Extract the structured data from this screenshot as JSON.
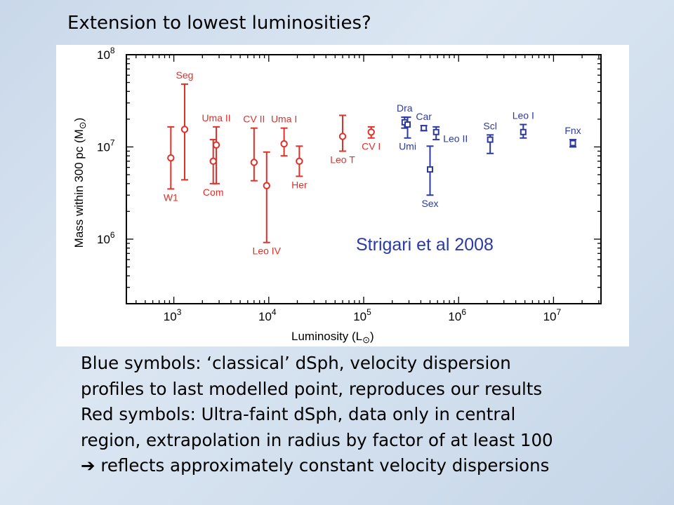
{
  "slide": {
    "title": "Extension to lowest luminosities?",
    "notes": [
      {
        "text": "Blue symbols: ‘classical’ dSph, velocity dispersion"
      },
      {
        "text": "profiles to last modelled point, reproduces our results"
      },
      {
        "text": "Red symbols: Ultra-faint dSph, data only in central"
      },
      {
        "text": "region, extrapolation in radius by factor of at least 100"
      },
      {
        "arrow": "➔",
        "text": " reflects approximately constant velocity dispersions"
      }
    ]
  },
  "colors": {
    "red": "#e0302a",
    "blue": "#2c3a9e",
    "annotation": "#2a3aa8"
  },
  "chart_data": {
    "type": "scatter",
    "title": "",
    "xlabel": "Luminosity (L",
    "ylabel": "Mass within 300 pc (M",
    "xscale": "log",
    "yscale": "log",
    "xlim_log10": [
      2.5,
      7.5
    ],
    "ylim_log10": [
      5.3,
      8
    ],
    "xticks": [
      {
        "base": "10",
        "exp": "3",
        "v": 3
      },
      {
        "base": "10",
        "exp": "4",
        "v": 4
      },
      {
        "base": "10",
        "exp": "5",
        "v": 5
      },
      {
        "base": "10",
        "exp": "6",
        "v": 6
      },
      {
        "base": "10",
        "exp": "7",
        "v": 7
      }
    ],
    "yticks": [
      {
        "base": "10",
        "exp": "6",
        "v": 6
      },
      {
        "base": "10",
        "exp": "7",
        "v": 7
      },
      {
        "base": "10",
        "exp": "8",
        "v": 8
      }
    ],
    "annotation": "Strigari et al 2008",
    "series": [
      {
        "color": "#e0302a",
        "marker": "circle",
        "points": [
          {
            "label": "W1",
            "L": 930,
            "M": 7600000.0,
            "lo": 3500000.0,
            "hi": 16500000.0,
            "lpos": "below"
          },
          {
            "label": "Seg",
            "L": 1300,
            "M": 15500000.0,
            "lo": 4400000.0,
            "hi": 48000000.0,
            "lpos": "above"
          },
          {
            "label": "Com",
            "L": 2600,
            "M": 7000000.0,
            "lo": 4000000.0,
            "hi": 12000000.0,
            "lpos": "below"
          },
          {
            "label": "Uma II",
            "L": 2800,
            "M": 10500000.0,
            "lo": 4000000.0,
            "hi": 16500000.0,
            "lpos": "above"
          },
          {
            "label": "CV II",
            "L": 7000,
            "M": 6800000.0,
            "lo": 4300000.0,
            "hi": 16000000.0,
            "lpos": "above"
          },
          {
            "label": "Leo IV",
            "L": 9500,
            "M": 3800000.0,
            "lo": 920000.0,
            "hi": 8800000.0,
            "lpos": "below"
          },
          {
            "label": "Uma I",
            "L": 14500,
            "M": 10800000.0,
            "lo": 8000000.0,
            "hi": 16000000.0,
            "lpos": "above"
          },
          {
            "label": "Her",
            "L": 21000,
            "M": 7000000.0,
            "lo": 4800000.0,
            "hi": 10200000.0,
            "lpos": "below"
          },
          {
            "label": "Leo T",
            "L": 60000,
            "M": 13000000.0,
            "lo": 9000000.0,
            "hi": 22000000.0,
            "lpos": "below"
          },
          {
            "label": "CV I",
            "L": 120000,
            "M": 14500000.0,
            "lo": 12500000.0,
            "hi": 16500000.0,
            "lpos": "below"
          }
        ]
      },
      {
        "color": "#2c3a9e",
        "marker": "square",
        "points": [
          {
            "label": "Dra",
            "L": 270000,
            "M": 18500000.0,
            "lo": 16000000.0,
            "hi": 21000000.0,
            "lpos": "above"
          },
          {
            "label": "Umi",
            "L": 290000,
            "M": 17500000.0,
            "lo": 12500000.0,
            "hi": 21000000.0,
            "lpos": "below"
          },
          {
            "label": "Car",
            "L": 430000,
            "M": 16000000.0,
            "lo": 15000000.0,
            "hi": 17000000.0,
            "lpos": "above"
          },
          {
            "label": "Sex",
            "L": 500000,
            "M": 5700000.0,
            "lo": 3000000.0,
            "hi": 10200000.0,
            "lpos": "below"
          },
          {
            "label": "Leo II",
            "L": 580000,
            "M": 14500000.0,
            "lo": 12000000.0,
            "hi": 16500000.0,
            "lpos": "right"
          },
          {
            "label": "Scl",
            "L": 2150000,
            "M": 12000000.0,
            "lo": 8500000.0,
            "hi": 13500000.0,
            "lpos": "above"
          },
          {
            "label": "Leo I",
            "L": 4800000,
            "M": 14500000.0,
            "lo": 12500000.0,
            "hi": 17500000.0,
            "lpos": "above"
          },
          {
            "label": "Fnx",
            "L": 16000000,
            "M": 11000000.0,
            "lo": 10000000.0,
            "hi": 12000000.0,
            "lpos": "above"
          }
        ]
      }
    ]
  }
}
